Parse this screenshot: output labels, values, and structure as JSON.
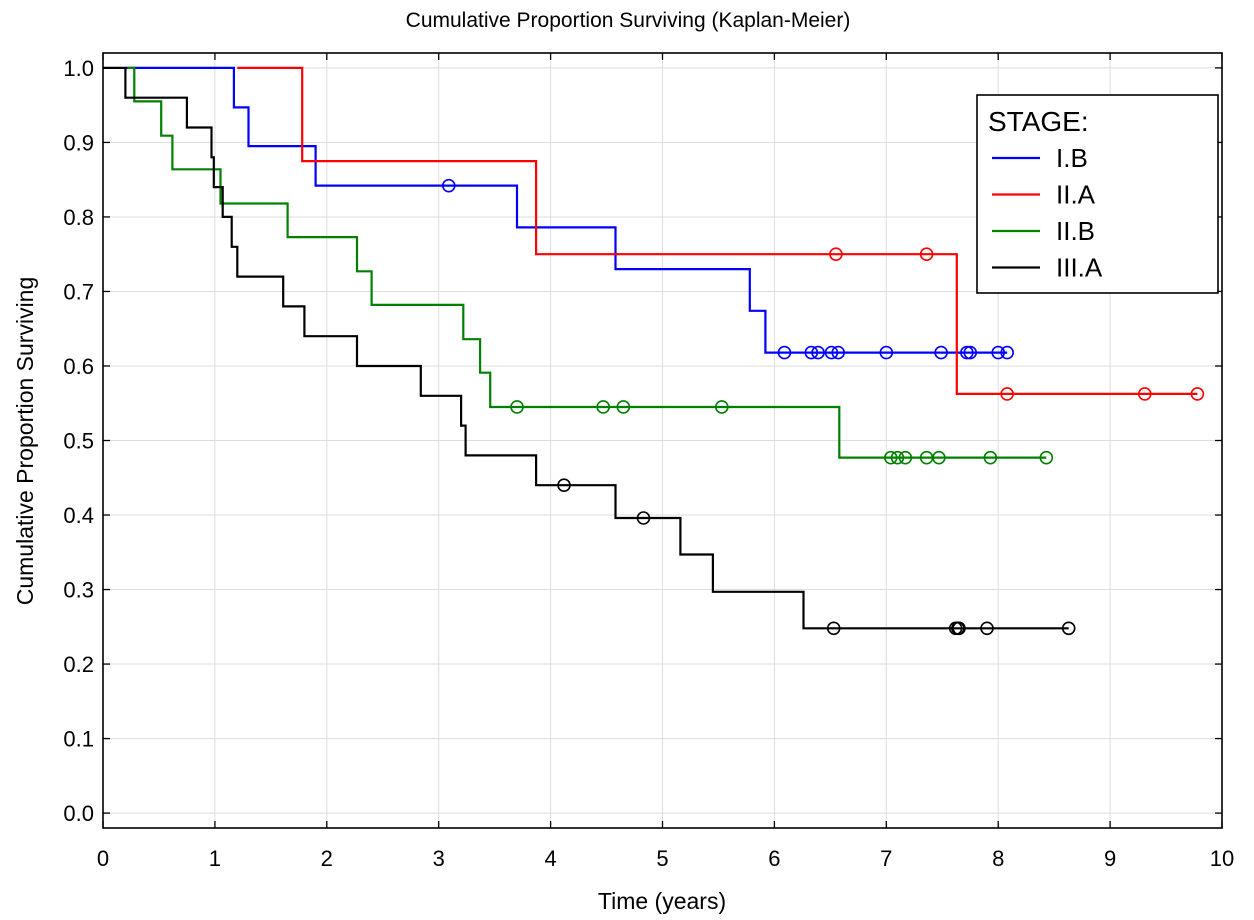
{
  "chart_data": {
    "type": "line",
    "title": "Cumulative Proportion Surviving (Kaplan-Meier)",
    "xlabel": "Time (years)",
    "ylabel": "Cumulative Proportion Surviving",
    "xlim": [
      0,
      10
    ],
    "ylim": [
      -0.02,
      1.02
    ],
    "xticks": [
      "0",
      "1",
      "2",
      "3",
      "4",
      "5",
      "6",
      "7",
      "8",
      "9",
      "10"
    ],
    "yticks": [
      "0.0",
      "0.1",
      "0.2",
      "0.3",
      "0.4",
      "0.5",
      "0.6",
      "0.7",
      "0.8",
      "0.9",
      "1.0"
    ],
    "grid": true,
    "legend": {
      "title": "STAGE:",
      "position": "top-right"
    },
    "series": [
      {
        "name": "I.B",
        "color": "#0000ff",
        "steps": [
          [
            0.2,
            1.0
          ],
          [
            1.17,
            0.947
          ],
          [
            1.3,
            0.895
          ],
          [
            1.9,
            0.842
          ],
          [
            3.7,
            0.786
          ],
          [
            4.58,
            0.73
          ],
          [
            5.78,
            0.674
          ],
          [
            5.92,
            0.618
          ],
          [
            8.08,
            0.618
          ]
        ],
        "censored": [
          [
            3.09,
            0.842
          ],
          [
            6.09,
            0.618
          ],
          [
            6.33,
            0.618
          ],
          [
            6.39,
            0.618
          ],
          [
            6.51,
            0.618
          ],
          [
            6.57,
            0.618
          ],
          [
            7.0,
            0.618
          ],
          [
            7.49,
            0.618
          ],
          [
            7.72,
            0.618
          ],
          [
            7.75,
            0.618
          ],
          [
            8.0,
            0.618
          ],
          [
            8.08,
            0.618
          ]
        ]
      },
      {
        "name": "II.A",
        "color": "#ff0000",
        "steps": [
          [
            1.2,
            1.0
          ],
          [
            1.78,
            0.875
          ],
          [
            3.87,
            0.75
          ],
          [
            7.63,
            0.5625
          ],
          [
            9.78,
            0.5625
          ]
        ],
        "censored": [
          [
            6.55,
            0.75
          ],
          [
            7.36,
            0.75
          ],
          [
            8.08,
            0.5625
          ],
          [
            9.31,
            0.5625
          ],
          [
            9.78,
            0.5625
          ]
        ]
      },
      {
        "name": "II.B",
        "color": "#008000",
        "steps": [
          [
            0.22,
            1.0
          ],
          [
            0.28,
            0.955
          ],
          [
            0.52,
            0.909
          ],
          [
            0.62,
            0.864
          ],
          [
            1.05,
            0.818
          ],
          [
            1.65,
            0.773
          ],
          [
            2.27,
            0.727
          ],
          [
            2.4,
            0.682
          ],
          [
            3.22,
            0.636
          ],
          [
            3.37,
            0.591
          ],
          [
            3.46,
            0.545
          ],
          [
            6.58,
            0.477
          ],
          [
            8.43,
            0.477
          ]
        ],
        "censored": [
          [
            3.7,
            0.545
          ],
          [
            4.47,
            0.545
          ],
          [
            4.65,
            0.545
          ],
          [
            5.53,
            0.545
          ],
          [
            7.04,
            0.477
          ],
          [
            7.1,
            0.477
          ],
          [
            7.17,
            0.477
          ],
          [
            7.36,
            0.477
          ],
          [
            7.47,
            0.477
          ],
          [
            7.93,
            0.477
          ],
          [
            8.43,
            0.477
          ]
        ]
      },
      {
        "name": "III.A",
        "color": "#000000",
        "steps": [
          [
            0.0,
            1.0
          ],
          [
            0.2,
            0.96
          ],
          [
            0.75,
            0.92
          ],
          [
            0.97,
            0.88
          ],
          [
            0.99,
            0.84
          ],
          [
            1.07,
            0.8
          ],
          [
            1.15,
            0.76
          ],
          [
            1.2,
            0.72
          ],
          [
            1.61,
            0.68
          ],
          [
            1.8,
            0.64
          ],
          [
            2.27,
            0.6
          ],
          [
            2.84,
            0.56
          ],
          [
            3.2,
            0.52
          ],
          [
            3.24,
            0.48
          ],
          [
            3.87,
            0.44
          ],
          [
            4.58,
            0.396
          ],
          [
            5.16,
            0.347
          ],
          [
            5.45,
            0.297
          ],
          [
            6.26,
            0.248
          ],
          [
            8.63,
            0.248
          ]
        ],
        "censored": [
          [
            4.12,
            0.44
          ],
          [
            4.83,
            0.396
          ],
          [
            6.53,
            0.248
          ],
          [
            7.62,
            0.248
          ],
          [
            7.64,
            0.248
          ],
          [
            7.65,
            0.248
          ],
          [
            7.9,
            0.248
          ],
          [
            8.63,
            0.248
          ]
        ]
      }
    ]
  }
}
